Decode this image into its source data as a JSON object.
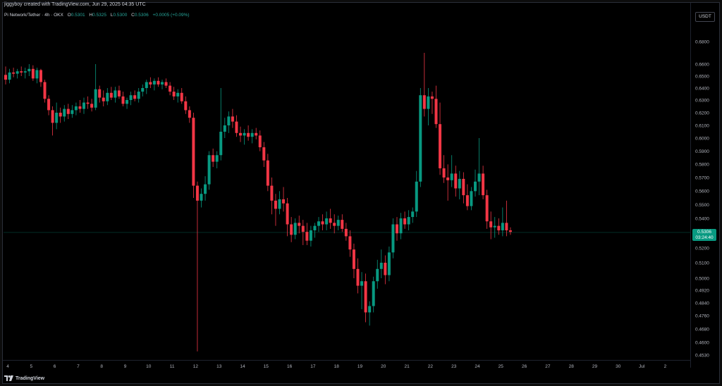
{
  "header": {
    "credit": "jiggyboy created with TradingView.com, Jun 29, 2025 04:35 UTC",
    "symbol": "Pi Network/Tether · 4h · OKX",
    "o_label": "O",
    "o_value": "0.5301",
    "h_label": "H",
    "h_value": "0.5325",
    "l_label": "L",
    "l_value": "0.5300",
    "c_label": "C",
    "c_value": "0.5306",
    "change": "+0.0005 (+0.09%)"
  },
  "currency": "USDT",
  "last_price": {
    "value": "0.5306",
    "countdown": "03:24:40"
  },
  "brand": "TradingView",
  "colors": {
    "up": "#089981",
    "down": "#f23645",
    "background": "#000000",
    "text": "#b2b5be"
  },
  "chart_data": {
    "type": "candlestick",
    "title": "",
    "y_ticks": [
      "0.6800",
      "0.6600",
      "0.6500",
      "0.6400",
      "0.6300",
      "0.6200",
      "0.6100",
      "0.6000",
      "0.5900",
      "0.5800",
      "0.5700",
      "0.5600",
      "0.5500",
      "0.5400",
      "0.5306",
      "0.5200",
      "0.5100",
      "0.5000",
      "0.4920",
      "0.4840",
      "0.4760",
      "0.4680",
      "0.4600",
      "0.4530"
    ],
    "x_ticks": [
      "4",
      "5",
      "6",
      "7",
      "8",
      "9",
      "10",
      "11",
      "12",
      "13",
      "14",
      "15",
      "16",
      "17",
      "18",
      "19",
      "20",
      "21",
      "22",
      "23",
      "24",
      "25",
      "26",
      "27",
      "28",
      "29",
      "30",
      "Jul",
      "2"
    ],
    "grid": false,
    "candles": [
      [
        0.651,
        0.658,
        0.643,
        0.647
      ],
      [
        0.647,
        0.656,
        0.644,
        0.653
      ],
      [
        0.653,
        0.657,
        0.649,
        0.652
      ],
      [
        0.652,
        0.656,
        0.648,
        0.654
      ],
      [
        0.654,
        0.658,
        0.65,
        0.653
      ],
      [
        0.653,
        0.657,
        0.648,
        0.654
      ],
      [
        0.654,
        0.66,
        0.65,
        0.656
      ],
      [
        0.656,
        0.659,
        0.646,
        0.648
      ],
      [
        0.648,
        0.657,
        0.644,
        0.655
      ],
      [
        0.655,
        0.656,
        0.641,
        0.645
      ],
      [
        0.645,
        0.647,
        0.628,
        0.631
      ],
      [
        0.631,
        0.634,
        0.618,
        0.622
      ],
      [
        0.622,
        0.625,
        0.602,
        0.612
      ],
      [
        0.612,
        0.628,
        0.607,
        0.62
      ],
      [
        0.62,
        0.624,
        0.612,
        0.617
      ],
      [
        0.617,
        0.626,
        0.613,
        0.623
      ],
      [
        0.623,
        0.627,
        0.615,
        0.619
      ],
      [
        0.619,
        0.626,
        0.616,
        0.622
      ],
      [
        0.622,
        0.628,
        0.618,
        0.625
      ],
      [
        0.625,
        0.63,
        0.62,
        0.623
      ],
      [
        0.623,
        0.632,
        0.619,
        0.628
      ],
      [
        0.628,
        0.633,
        0.623,
        0.627
      ],
      [
        0.627,
        0.631,
        0.621,
        0.624
      ],
      [
        0.624,
        0.66,
        0.622,
        0.639
      ],
      [
        0.639,
        0.642,
        0.628,
        0.632
      ],
      [
        0.632,
        0.638,
        0.625,
        0.629
      ],
      [
        0.629,
        0.64,
        0.626,
        0.636
      ],
      [
        0.636,
        0.641,
        0.63,
        0.632
      ],
      [
        0.632,
        0.641,
        0.628,
        0.638
      ],
      [
        0.638,
        0.642,
        0.631,
        0.633
      ],
      [
        0.633,
        0.637,
        0.625,
        0.627
      ],
      [
        0.627,
        0.632,
        0.623,
        0.63
      ],
      [
        0.63,
        0.637,
        0.626,
        0.634
      ],
      [
        0.634,
        0.638,
        0.629,
        0.631
      ],
      [
        0.631,
        0.64,
        0.628,
        0.637
      ],
      [
        0.637,
        0.643,
        0.633,
        0.64
      ],
      [
        0.64,
        0.647,
        0.635,
        0.645
      ],
      [
        0.645,
        0.649,
        0.64,
        0.643
      ],
      [
        0.643,
        0.648,
        0.638,
        0.646
      ],
      [
        0.646,
        0.649,
        0.641,
        0.643
      ],
      [
        0.643,
        0.647,
        0.639,
        0.645
      ],
      [
        0.645,
        0.648,
        0.64,
        0.642
      ],
      [
        0.642,
        0.645,
        0.634,
        0.637
      ],
      [
        0.637,
        0.641,
        0.63,
        0.633
      ],
      [
        0.633,
        0.639,
        0.628,
        0.636
      ],
      [
        0.636,
        0.64,
        0.627,
        0.629
      ],
      [
        0.629,
        0.633,
        0.619,
        0.622
      ],
      [
        0.622,
        0.625,
        0.612,
        0.616
      ],
      [
        0.616,
        0.62,
        0.555,
        0.564
      ],
      [
        0.564,
        0.567,
        0.455,
        0.553
      ],
      [
        0.553,
        0.562,
        0.548,
        0.558
      ],
      [
        0.558,
        0.571,
        0.553,
        0.565
      ],
      [
        0.565,
        0.59,
        0.561,
        0.587
      ],
      [
        0.587,
        0.592,
        0.578,
        0.582
      ],
      [
        0.582,
        0.59,
        0.577,
        0.587
      ],
      [
        0.587,
        0.64,
        0.583,
        0.605
      ],
      [
        0.605,
        0.616,
        0.6,
        0.61
      ],
      [
        0.61,
        0.621,
        0.604,
        0.617
      ],
      [
        0.617,
        0.623,
        0.608,
        0.613
      ],
      [
        0.613,
        0.618,
        0.601,
        0.604
      ],
      [
        0.604,
        0.609,
        0.597,
        0.602
      ],
      [
        0.602,
        0.607,
        0.595,
        0.604
      ],
      [
        0.604,
        0.61,
        0.598,
        0.601
      ],
      [
        0.601,
        0.607,
        0.596,
        0.604
      ],
      [
        0.604,
        0.608,
        0.599,
        0.602
      ],
      [
        0.602,
        0.606,
        0.59,
        0.593
      ],
      [
        0.593,
        0.597,
        0.578,
        0.583
      ],
      [
        0.583,
        0.588,
        0.56,
        0.564
      ],
      [
        0.564,
        0.57,
        0.543,
        0.553
      ],
      [
        0.553,
        0.558,
        0.535,
        0.547
      ],
      [
        0.547,
        0.56,
        0.543,
        0.554
      ],
      [
        0.554,
        0.563,
        0.545,
        0.551
      ],
      [
        0.551,
        0.555,
        0.528,
        0.536
      ],
      [
        0.536,
        0.541,
        0.524,
        0.529
      ],
      [
        0.529,
        0.54,
        0.526,
        0.537
      ],
      [
        0.537,
        0.542,
        0.53,
        0.535
      ],
      [
        0.535,
        0.539,
        0.522,
        0.531
      ],
      [
        0.531,
        0.537,
        0.522,
        0.525
      ],
      [
        0.525,
        0.535,
        0.521,
        0.532
      ],
      [
        0.532,
        0.537,
        0.527,
        0.535
      ],
      [
        0.535,
        0.541,
        0.531,
        0.538
      ],
      [
        0.538,
        0.543,
        0.532,
        0.536
      ],
      [
        0.536,
        0.545,
        0.532,
        0.54
      ],
      [
        0.54,
        0.547,
        0.533,
        0.537
      ],
      [
        0.537,
        0.543,
        0.53,
        0.535
      ],
      [
        0.535,
        0.542,
        0.532,
        0.539
      ],
      [
        0.539,
        0.543,
        0.531,
        0.533
      ],
      [
        0.533,
        0.537,
        0.525,
        0.528
      ],
      [
        0.528,
        0.532,
        0.514,
        0.519
      ],
      [
        0.519,
        0.523,
        0.5,
        0.506
      ],
      [
        0.506,
        0.513,
        0.49,
        0.495
      ],
      [
        0.495,
        0.504,
        0.48,
        0.498
      ],
      [
        0.498,
        0.503,
        0.472,
        0.478
      ],
      [
        0.478,
        0.485,
        0.47,
        0.482
      ],
      [
        0.482,
        0.501,
        0.478,
        0.498
      ],
      [
        0.498,
        0.512,
        0.493,
        0.506
      ],
      [
        0.506,
        0.519,
        0.5,
        0.51
      ],
      [
        0.51,
        0.515,
        0.496,
        0.502
      ],
      [
        0.502,
        0.521,
        0.498,
        0.517
      ],
      [
        0.517,
        0.54,
        0.513,
        0.536
      ],
      [
        0.536,
        0.541,
        0.525,
        0.53
      ],
      [
        0.53,
        0.544,
        0.526,
        0.54
      ],
      [
        0.54,
        0.545,
        0.533,
        0.536
      ],
      [
        0.536,
        0.546,
        0.532,
        0.541
      ],
      [
        0.541,
        0.548,
        0.537,
        0.545
      ],
      [
        0.545,
        0.575,
        0.541,
        0.567
      ],
      [
        0.567,
        0.64,
        0.563,
        0.634
      ],
      [
        0.634,
        0.67,
        0.617,
        0.623
      ],
      [
        0.623,
        0.64,
        0.61,
        0.633
      ],
      [
        0.633,
        0.637,
        0.619,
        0.631
      ],
      [
        0.631,
        0.642,
        0.608,
        0.611
      ],
      [
        0.611,
        0.628,
        0.572,
        0.577
      ],
      [
        0.577,
        0.587,
        0.566,
        0.57
      ],
      [
        0.57,
        0.58,
        0.553,
        0.568
      ],
      [
        0.568,
        0.587,
        0.563,
        0.573
      ],
      [
        0.573,
        0.579,
        0.556,
        0.562
      ],
      [
        0.562,
        0.575,
        0.554,
        0.569
      ],
      [
        0.569,
        0.574,
        0.551,
        0.557
      ],
      [
        0.557,
        0.565,
        0.546,
        0.549
      ],
      [
        0.549,
        0.563,
        0.546,
        0.56
      ],
      [
        0.56,
        0.576,
        0.556,
        0.567
      ],
      [
        0.567,
        0.6,
        0.557,
        0.573
      ],
      [
        0.573,
        0.579,
        0.554,
        0.557
      ],
      [
        0.557,
        0.561,
        0.533,
        0.538
      ],
      [
        0.538,
        0.545,
        0.526,
        0.534
      ],
      [
        0.534,
        0.541,
        0.527,
        0.535
      ],
      [
        0.535,
        0.54,
        0.529,
        0.532
      ],
      [
        0.532,
        0.548,
        0.528,
        0.537
      ],
      [
        0.537,
        0.553,
        0.528,
        0.532
      ],
      [
        0.532,
        0.534,
        0.529,
        0.531
      ]
    ]
  }
}
